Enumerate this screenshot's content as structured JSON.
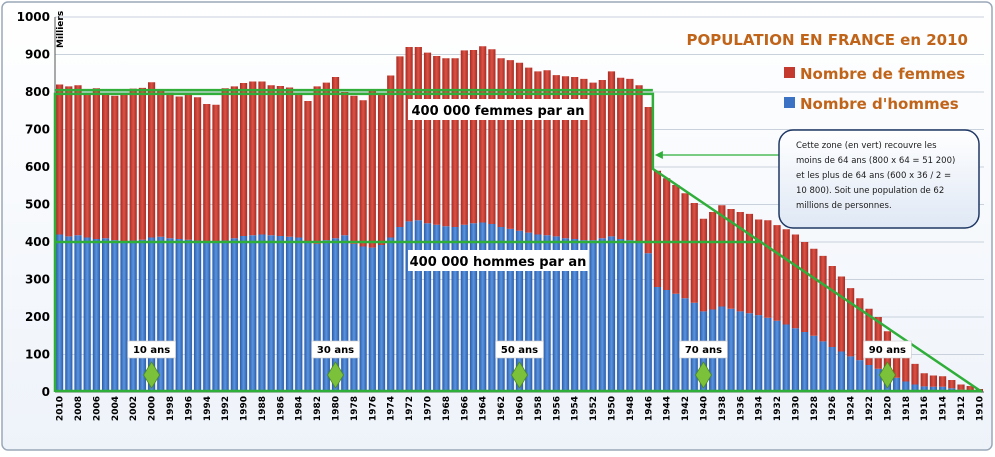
{
  "chart_data": {
    "type": "bar",
    "stacked": true,
    "title": "POPULATION EN FRANCE en 2010",
    "unit_label": "Milliers",
    "ylim": [
      0,
      1000
    ],
    "yticks": [
      "0",
      "100",
      "200",
      "300",
      "400",
      "500",
      "600",
      "700",
      "800",
      "900",
      "1000"
    ],
    "legend_position": "top-right",
    "years": [
      2010,
      2009,
      2008,
      2007,
      2006,
      2005,
      2004,
      2003,
      2002,
      2001,
      2000,
      1999,
      1998,
      1997,
      1996,
      1995,
      1994,
      1993,
      1992,
      1991,
      1990,
      1989,
      1988,
      1987,
      1986,
      1985,
      1984,
      1983,
      1982,
      1981,
      1980,
      1979,
      1978,
      1977,
      1976,
      1975,
      1974,
      1973,
      1972,
      1971,
      1970,
      1969,
      1968,
      1967,
      1966,
      1965,
      1964,
      1963,
      1962,
      1961,
      1960,
      1959,
      1958,
      1957,
      1956,
      1955,
      1954,
      1953,
      1952,
      1951,
      1950,
      1949,
      1948,
      1947,
      1946,
      1945,
      1944,
      1943,
      1942,
      1941,
      1940,
      1939,
      1938,
      1937,
      1936,
      1935,
      1934,
      1933,
      1932,
      1931,
      1930,
      1929,
      1928,
      1927,
      1926,
      1925,
      1924,
      1923,
      1922,
      1921,
      1920,
      1919,
      1918,
      1917,
      1916,
      1915,
      1914,
      1913,
      1912,
      1911,
      1910
    ],
    "xtick_labels": [
      "2010",
      "2008",
      "2006",
      "2004",
      "2002",
      "2000",
      "1998",
      "1996",
      "1994",
      "1992",
      "1990",
      "1988",
      "1986",
      "1984",
      "1982",
      "1980",
      "1978",
      "1976",
      "1974",
      "1972",
      "1970",
      "1968",
      "1966",
      "1964",
      "1962",
      "1960",
      "1958",
      "1956",
      "1954",
      "1952",
      "1950",
      "1948",
      "1946",
      "1944",
      "1942",
      "1940",
      "1938",
      "1936",
      "1934",
      "1932",
      "1930",
      "1928",
      "1926",
      "1924",
      "1922",
      "1920",
      "1918",
      "1916",
      "1914",
      "1912",
      "1910"
    ],
    "series": [
      {
        "name": "Nombre d'hommes",
        "color": "#3b72c4",
        "values": [
          420,
          415,
          418,
          412,
          408,
          410,
          405,
          402,
          404,
          406,
          412,
          414,
          410,
          408,
          406,
          404,
          402,
          400,
          404,
          410,
          416,
          418,
          420,
          418,
          416,
          414,
          412,
          400,
          395,
          405,
          410,
          418,
          395,
          388,
          385,
          392,
          412,
          440,
          455,
          458,
          450,
          446,
          442,
          440,
          446,
          450,
          452,
          448,
          440,
          435,
          430,
          425,
          420,
          418,
          415,
          410,
          408,
          405,
          405,
          410,
          415,
          408,
          405,
          398,
          370,
          280,
          272,
          262,
          250,
          238,
          215,
          220,
          228,
          222,
          215,
          210,
          205,
          198,
          190,
          180,
          170,
          160,
          150,
          135,
          120,
          108,
          95,
          85,
          72,
          62,
          52,
          38,
          28,
          20,
          15,
          14,
          14,
          10,
          6,
          4,
          2
        ]
      },
      {
        "name": "Nombre de femmes",
        "color": "#c43a2f",
        "values": [
          400,
          400,
          400,
          380,
          402,
          385,
          385,
          390,
          405,
          405,
          414,
          394,
          388,
          380,
          388,
          382,
          366,
          366,
          406,
          405,
          408,
          410,
          408,
          400,
          400,
          398,
          380,
          376,
          420,
          420,
          430,
          382,
          395,
          390,
          420,
          400,
          432,
          455,
          465,
          462,
          455,
          450,
          448,
          450,
          465,
          462,
          470,
          466,
          450,
          450,
          448,
          440,
          435,
          440,
          430,
          432,
          432,
          430,
          420,
          422,
          440,
          430,
          430,
          420,
          390,
          310,
          298,
          290,
          280,
          266,
          247,
          260,
          270,
          266,
          265,
          265,
          255,
          260,
          255,
          254,
          250,
          240,
          232,
          228,
          216,
          200,
          182,
          165,
          150,
          138,
          110,
          85,
          70,
          55,
          35,
          30,
          28,
          22,
          14,
          12,
          6
        ]
      }
    ],
    "overlay": {
      "female_band_label": "400 000 femmes par an",
      "male_band_label": "400 000 hommes par an",
      "note": [
        "Cette zone (en vert) recouvre les",
        "moins de 64 ans (800 x 64 = 51 200)",
        "et les plus de 64 ans (600 x 36 / 2 =",
        "10 800). Soit une population de 62",
        "millions de personnes."
      ],
      "age_markers": [
        {
          "label": "10 ans",
          "year": 2000
        },
        {
          "label": "30 ans",
          "year": 1980
        },
        {
          "label": "50 ans",
          "year": 1960
        },
        {
          "label": "70 ans",
          "year": 1940
        },
        {
          "label": "90 ans",
          "year": 1920
        }
      ],
      "band_color": "#2fae3a"
    }
  }
}
